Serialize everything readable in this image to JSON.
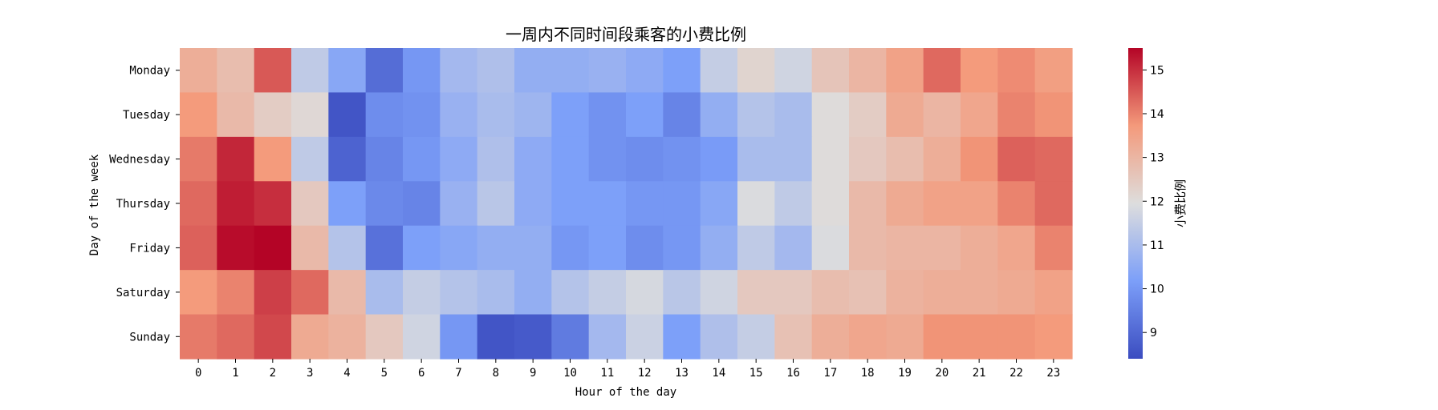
{
  "chart_data": {
    "type": "heatmap",
    "title": "一周内不同时间段乘客的小费比例",
    "xlabel": "Hour of the day",
    "ylabel": "Day of the week",
    "x": [
      "0",
      "1",
      "2",
      "3",
      "4",
      "5",
      "6",
      "7",
      "8",
      "9",
      "10",
      "11",
      "12",
      "13",
      "14",
      "15",
      "16",
      "17",
      "18",
      "19",
      "20",
      "21",
      "22",
      "23"
    ],
    "y": [
      "Monday",
      "Tuesday",
      "Wednesday",
      "Thursday",
      "Friday",
      "Saturday",
      "Sunday"
    ],
    "values": [
      [
        13.2,
        12.8,
        14.5,
        11.4,
        10.4,
        9.1,
        10.0,
        10.9,
        11.1,
        10.6,
        10.6,
        10.7,
        10.5,
        10.2,
        11.5,
        12.2,
        11.7,
        12.6,
        13.0,
        13.5,
        14.3,
        13.7,
        13.9,
        13.6
      ],
      [
        13.7,
        12.9,
        12.4,
        12.1,
        8.6,
        9.8,
        9.9,
        10.7,
        11.0,
        10.8,
        10.2,
        9.9,
        10.2,
        9.6,
        10.6,
        11.2,
        11.0,
        12.0,
        12.4,
        13.3,
        13.0,
        13.4,
        14.0,
        13.8
      ],
      [
        14.1,
        15.1,
        13.7,
        11.4,
        8.9,
        9.6,
        10.0,
        10.5,
        11.1,
        10.5,
        10.2,
        9.9,
        9.8,
        9.9,
        10.1,
        11.0,
        11.0,
        12.0,
        12.5,
        12.8,
        13.2,
        13.8,
        14.4,
        14.3
      ],
      [
        14.3,
        15.2,
        15.0,
        12.5,
        10.2,
        9.7,
        9.6,
        10.7,
        11.3,
        10.5,
        10.2,
        10.2,
        10.0,
        10.0,
        10.4,
        11.9,
        11.4,
        12.0,
        12.9,
        13.3,
        13.5,
        13.5,
        14.0,
        14.3
      ],
      [
        14.4,
        15.4,
        15.5,
        12.9,
        11.2,
        9.2,
        10.2,
        10.4,
        10.6,
        10.6,
        10.0,
        10.2,
        9.8,
        10.0,
        10.6,
        11.4,
        10.9,
        11.9,
        12.9,
        13.0,
        13.0,
        13.2,
        13.4,
        14.0
      ],
      [
        13.7,
        14.0,
        14.8,
        14.3,
        12.9,
        11.0,
        11.5,
        11.2,
        11.0,
        10.6,
        11.2,
        11.5,
        11.8,
        11.3,
        11.7,
        12.5,
        12.5,
        12.8,
        12.7,
        13.1,
        13.2,
        13.2,
        13.3,
        13.5
      ],
      [
        14.1,
        14.3,
        14.7,
        13.3,
        13.1,
        12.5,
        11.7,
        10.0,
        8.6,
        8.7,
        9.4,
        10.9,
        11.6,
        10.2,
        11.1,
        11.5,
        12.7,
        13.2,
        13.4,
        13.3,
        13.8,
        13.8,
        13.8,
        13.7
      ]
    ],
    "vmin": 8.4,
    "vmax": 15.5,
    "colormap": "coolwarm",
    "colorbar": {
      "label": "小费比例",
      "ticks": [
        "9",
        "10",
        "11",
        "12",
        "13",
        "14",
        "15"
      ]
    }
  }
}
